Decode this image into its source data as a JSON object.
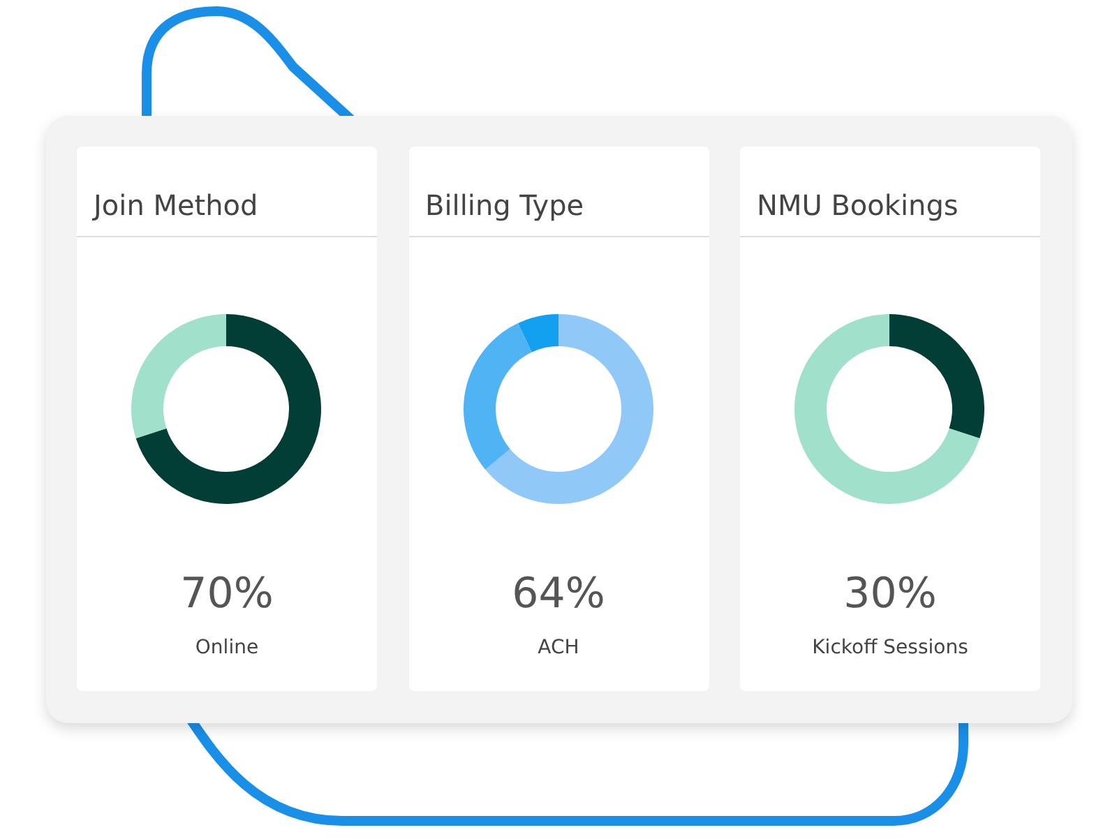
{
  "chart_data": [
    {
      "type": "donut",
      "title": "Join Method",
      "categories": [
        null,
        null
      ],
      "values": [
        70,
        30
      ],
      "colors": [
        "#023d36",
        "#a1e1cc"
      ],
      "annotations": [
        "70%",
        "Online"
      ]
    },
    {
      "type": "donut",
      "title": "Billing Type",
      "categories": [
        null,
        null,
        null
      ],
      "values": [
        64,
        29,
        7
      ],
      "colors": [
        "#90c8f8",
        "#4fb3f4",
        "#14a0f0"
      ],
      "annotations": [
        "64%",
        "ACH"
      ]
    },
    {
      "type": "donut",
      "title": "NMU Bookings",
      "categories": [
        null,
        null
      ],
      "values": [
        30,
        70
      ],
      "colors": [
        "#023d36",
        "#a1e1cc"
      ],
      "annotations": [
        "30%",
        "Kickoff Sessions"
      ]
    }
  ]
}
